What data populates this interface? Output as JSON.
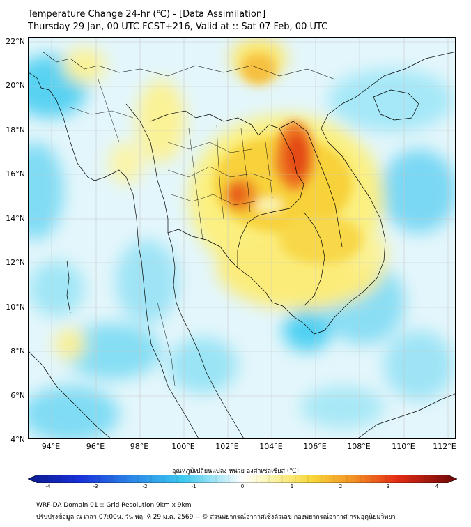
{
  "title_line1": "Temperature Change 24-hr (℃) - [Data Assimilation]",
  "title_line2": "Thursday 29 Jan, 00 UTC FCST+216, Valid at :: Sat 07 Feb, 00 UTC",
  "map": {
    "lat_labels": [
      "22°N",
      "20°N",
      "18°N",
      "16°N",
      "14°N",
      "12°N",
      "10°N",
      "8°N",
      "6°N",
      "4°N"
    ],
    "lon_labels": [
      "94°E",
      "96°E",
      "98°E",
      "100°E",
      "102°E",
      "104°E",
      "106°E",
      "108°E",
      "110°E",
      "112°E"
    ],
    "lat_range": [
      4,
      22.2
    ],
    "lon_range": [
      93,
      112.5
    ]
  },
  "colorbar": {
    "label": "อุณหภูมิเปลี่ยนแปลง หน่วย องศาเซลเซียส (℃)",
    "ticks": [
      "-4",
      "-3",
      "-2",
      "-1",
      "0",
      "1",
      "2",
      "3",
      "4"
    ],
    "range": [
      -4,
      4
    ]
  },
  "footer_line1": "WRF-DA Domain 01 :: Grid Resolution 9km x 9km",
  "footer_line2": "ปรับปรุงข้อมูล ณ เวลา 07:00น. วัน พฤ. ที่ 29 ม.ค. 2569 -- © ส่วนพยากรณ์อากาศเชิงตัวเลข กองพยากรณ์อากาศ กรมอุตุนิยมวิทยา",
  "colors": {
    "land_border": "#000000",
    "gridline": "#c8c8c8",
    "warm_peak": "#e83018",
    "cool_peak": "#38c8f0"
  }
}
